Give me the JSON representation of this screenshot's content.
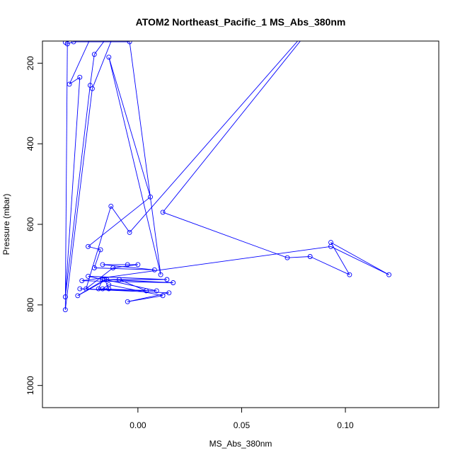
{
  "chart_data": {
    "type": "line",
    "title": "ATOM2 Northeast_Pacific_1 MS_Abs_380nm",
    "xlabel": "MS_Abs_380nm",
    "ylabel": "Pressure (mbar)",
    "xlim": [
      -0.046,
      0.145
    ],
    "ylim": [
      1055,
      145
    ],
    "y_reversed": true,
    "x_ticks": [
      0.0,
      0.05,
      0.1
    ],
    "x_tick_labels": [
      "0.00",
      "0.05",
      "0.10"
    ],
    "y_ticks": [
      200,
      400,
      600,
      800,
      1000
    ],
    "y_tick_labels": [
      "200",
      "400",
      "600",
      "800",
      "1000"
    ],
    "grid": false,
    "legend": "none",
    "colors": {
      "series": "#0000ff"
    },
    "series": [
      {
        "points": [
          [
            -0.035,
            148
          ],
          [
            -0.022,
            128
          ],
          [
            -0.033,
            252
          ],
          [
            -0.028,
            235
          ],
          [
            -0.035,
            780
          ],
          [
            -0.023,
            255
          ],
          [
            -0.021,
            178
          ],
          [
            -0.009,
            95
          ],
          [
            -0.022,
            263
          ],
          [
            -0.035,
            812
          ],
          [
            -0.034,
            152
          ],
          [
            -0.031,
            147
          ],
          [
            -0.004,
            147
          ],
          [
            0.011,
            725
          ],
          [
            -0.014,
            185
          ],
          [
            0.006,
            532
          ],
          [
            -0.024,
            655
          ],
          [
            -0.018,
            663
          ],
          [
            -0.021,
            708
          ],
          [
            0.008,
            713
          ],
          [
            -0.017,
            700
          ],
          [
            -0.005,
            700
          ],
          [
            0.0,
            700
          ],
          [
            -0.012,
            708
          ],
          [
            -0.025,
            760
          ],
          [
            -0.013,
            555
          ],
          [
            -0.004,
            620
          ],
          [
            0.092,
            57
          ],
          [
            0.012,
            570
          ],
          [
            0.072,
            683
          ],
          [
            0.083,
            680
          ],
          [
            0.102,
            725
          ],
          [
            0.093,
            645
          ],
          [
            0.121,
            725
          ],
          [
            0.093,
            655
          ],
          [
            -0.027,
            740
          ],
          [
            0.017,
            745
          ],
          [
            -0.015,
            737
          ],
          [
            -0.029,
            777
          ],
          [
            -0.016,
            737
          ],
          [
            0.014,
            737
          ],
          [
            -0.024,
            729
          ],
          [
            -0.017,
            737
          ],
          [
            -0.019,
            760
          ],
          [
            0.009,
            765
          ],
          [
            -0.016,
            737
          ],
          [
            -0.014,
            760
          ],
          [
            -0.017,
            760
          ],
          [
            -0.014,
            750
          ],
          [
            0.012,
            777
          ],
          [
            -0.005,
            792
          ],
          [
            0.015,
            770
          ],
          [
            -0.028,
            760
          ],
          [
            0.004,
            765
          ],
          [
            -0.009,
            737
          ]
        ]
      }
    ]
  }
}
